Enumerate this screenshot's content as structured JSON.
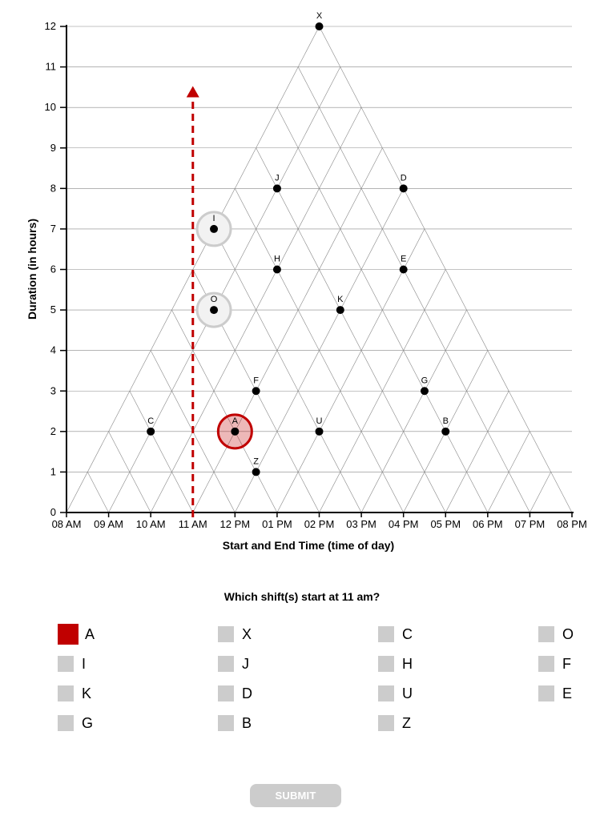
{
  "chart_data": {
    "type": "scatter",
    "title": "",
    "xlabel": "Start and End Time (time of day)",
    "ylabel": "Duration (in hours)",
    "x_ticks": [
      "08 AM",
      "09 AM",
      "10 AM",
      "11 AM",
      "12 PM",
      "01 PM",
      "02 PM",
      "03 PM",
      "04 PM",
      "05 PM",
      "06 PM",
      "07 PM",
      "08 PM"
    ],
    "xlim_hours": [
      8,
      20
    ],
    "ylim": [
      0,
      12
    ],
    "y_ticks": [
      0,
      1,
      2,
      3,
      4,
      5,
      6,
      7,
      8,
      9,
      10,
      11,
      12
    ],
    "grid": "triangular",
    "points": [
      {
        "label": "X",
        "start": "08 AM",
        "duration": 12
      },
      {
        "label": "J",
        "start": "09 AM",
        "duration": 8
      },
      {
        "label": "D",
        "start": "12 PM",
        "duration": 8
      },
      {
        "label": "I",
        "start": "08 AM",
        "duration": 7
      },
      {
        "label": "H",
        "start": "10 AM",
        "duration": 6
      },
      {
        "label": "E",
        "start": "01 PM",
        "duration": 6
      },
      {
        "label": "O",
        "start": "09 AM",
        "duration": 5
      },
      {
        "label": "K",
        "start": "12 PM",
        "duration": 5
      },
      {
        "label": "F",
        "start": "11 AM",
        "duration": 3
      },
      {
        "label": "G",
        "start": "03 PM",
        "duration": 3
      },
      {
        "label": "C",
        "start": "09 AM",
        "duration": 2
      },
      {
        "label": "A",
        "start": "11 AM",
        "duration": 2
      },
      {
        "label": "U",
        "start": "01 PM",
        "duration": 2
      },
      {
        "label": "B",
        "start": "04 PM",
        "duration": 2
      },
      {
        "label": "Z",
        "start": "12 PM",
        "duration": 1
      }
    ],
    "highlighted_point": "A",
    "faded_points": [
      "I",
      "O"
    ],
    "guide_line_start": "11 AM",
    "colors": {
      "highlight": "#c00000",
      "faded": "#cccccc",
      "grid": "#888888",
      "point": "#000000"
    }
  },
  "question": "Which shift(s) start at 11 am?",
  "options": [
    "A",
    "X",
    "C",
    "O",
    "I",
    "J",
    "H",
    "F",
    "K",
    "D",
    "U",
    "E",
    "G",
    "B",
    "Z"
  ],
  "selected": [
    "A"
  ],
  "submit_label": "SUBMIT"
}
